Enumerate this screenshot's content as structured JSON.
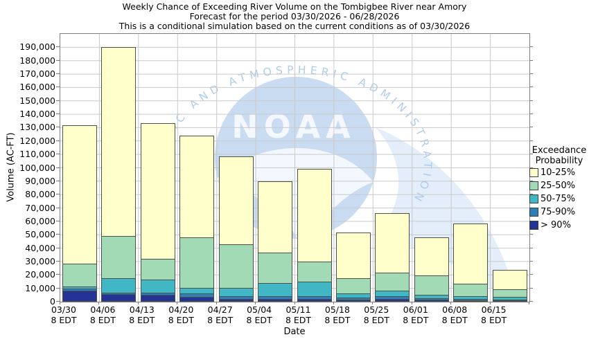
{
  "titles": {
    "line1": "Weekly Chance of Exceeding River Volume on the Tombigbee River near Amory",
    "line2": "Forecast for the period 03/30/2026 - 06/28/2026",
    "line3": "This is a conditional simulation based on the current conditions as of 03/30/2026"
  },
  "axes": {
    "y_label": "Volume (AC-FT)",
    "x_label": "Date",
    "y_tick_step": 10000,
    "y_max_label": 190000,
    "tick_sublabel": "8 EDT"
  },
  "legend": {
    "title_line1": "Exceedance",
    "title_line2": "Probability",
    "items": [
      {
        "label": "10-25%",
        "color": "#ffffcc"
      },
      {
        "label": "25-50%",
        "color": "#a1dab4"
      },
      {
        "label": "50-75%",
        "color": "#41b6c4"
      },
      {
        "label": "75-90%",
        "color": "#2c7fb8"
      },
      {
        "label": "> 90%",
        "color": "#253494"
      }
    ]
  },
  "watermark": {
    "center_text": "NOAA",
    "arc_text": "OCEANIC AND ATMOSPHERIC ADMINISTRATION"
  },
  "chart_data": {
    "type": "bar",
    "stacked": true,
    "title": "Weekly Chance of Exceeding River Volume on the Tombigbee River near Amory",
    "xlabel": "Date",
    "ylabel": "Volume (AC-FT)",
    "ylim": [
      0,
      200000
    ],
    "grid": true,
    "legend_position": "right",
    "categories": [
      "03/30",
      "04/06",
      "04/13",
      "04/20",
      "04/27",
      "05/04",
      "05/11",
      "05/18",
      "05/25",
      "06/01",
      "06/08",
      "06/15"
    ],
    "category_sublabel": "8 EDT",
    "series": [
      {
        "name": "> 90%",
        "color": "#253494",
        "values": [
          8000,
          5000,
          4500,
          3000,
          1500,
          1500,
          1500,
          1000,
          1500,
          1000,
          500,
          500
        ]
      },
      {
        "name": "75-90%",
        "color": "#2c7fb8",
        "values": [
          1500,
          1500,
          1500,
          2500,
          2000,
          2000,
          2000,
          1500,
          2000,
          1000,
          1000,
          500
        ]
      },
      {
        "name": "50-75%",
        "color": "#41b6c4",
        "values": [
          1500,
          10500,
          10000,
          4500,
          6500,
          10000,
          11000,
          3500,
          4500,
          2500,
          2000,
          2000
        ]
      },
      {
        "name": "25-50%",
        "color": "#a1dab4",
        "values": [
          17000,
          32000,
          16000,
          38000,
          33000,
          23000,
          15500,
          11500,
          13500,
          15000,
          9500,
          6000
        ]
      },
      {
        "name": "10-25%",
        "color": "#ffffcc",
        "values": [
          104000,
          141000,
          101500,
          76000,
          65500,
          53500,
          69500,
          34000,
          44500,
          28500,
          45500,
          15000
        ]
      }
    ],
    "bar_totals": [
      132000,
      190000,
      133500,
      124000,
      108500,
      90000,
      99500,
      51500,
      66000,
      48000,
      58500,
      24000
    ]
  }
}
